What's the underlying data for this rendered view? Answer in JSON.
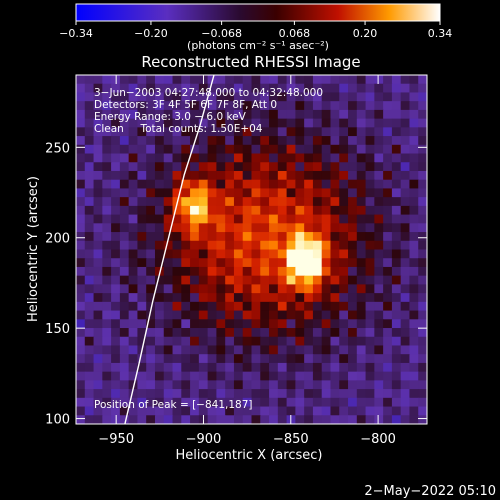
{
  "chart_data": {
    "type": "heatmap",
    "title": "Reconstructed RHESSI Image",
    "xlabel": "Heliocentric X (arcsec)",
    "ylabel": "Heliocentric Y (arcsec)",
    "xlim": [
      -973,
      -772
    ],
    "ylim": [
      97,
      290
    ],
    "x_ticks": [
      -950,
      -900,
      -850,
      -800
    ],
    "x_tick_labels": [
      "−950",
      "−900",
      "−850",
      "−800"
    ],
    "y_ticks": [
      100,
      150,
      200,
      250
    ],
    "y_tick_labels": [
      "100",
      "150",
      "200",
      "250"
    ],
    "colorbar": {
      "range": [
        -0.34,
        0.34
      ],
      "ticks": [
        -0.34,
        -0.2,
        -0.068,
        0.068,
        0.2,
        0.34
      ],
      "tick_labels": [
        "−0.34",
        "−0.20",
        "−0.068",
        "0.068",
        "0.20",
        "0.34"
      ],
      "label": "(photons cm⁻² s⁻¹ asec⁻²)"
    },
    "annotations": [
      "3−Jun−2003 04:27:48.000 to 04:32:48.000",
      "Detectors: 3F 4F 5F 6F 7F 8F, Att 0",
      "Energy Range: 3.0 − 6.0 keV",
      "Clean     Total counts: 1.50E+04"
    ],
    "peak_text": "Position of Peak = [−841,187]",
    "peaks": [
      {
        "x": -841,
        "y": 187,
        "value": 0.34
      },
      {
        "x": -906,
        "y": 218,
        "value": 0.27
      }
    ],
    "limb_curve": [
      [
        -945,
        97
      ],
      [
        -937,
        130
      ],
      [
        -929,
        165
      ],
      [
        -920,
        200
      ],
      [
        -911,
        235
      ],
      [
        -902,
        262
      ],
      [
        -894,
        290
      ]
    ]
  },
  "footer_timestamp": "2−May−2022 05:10"
}
